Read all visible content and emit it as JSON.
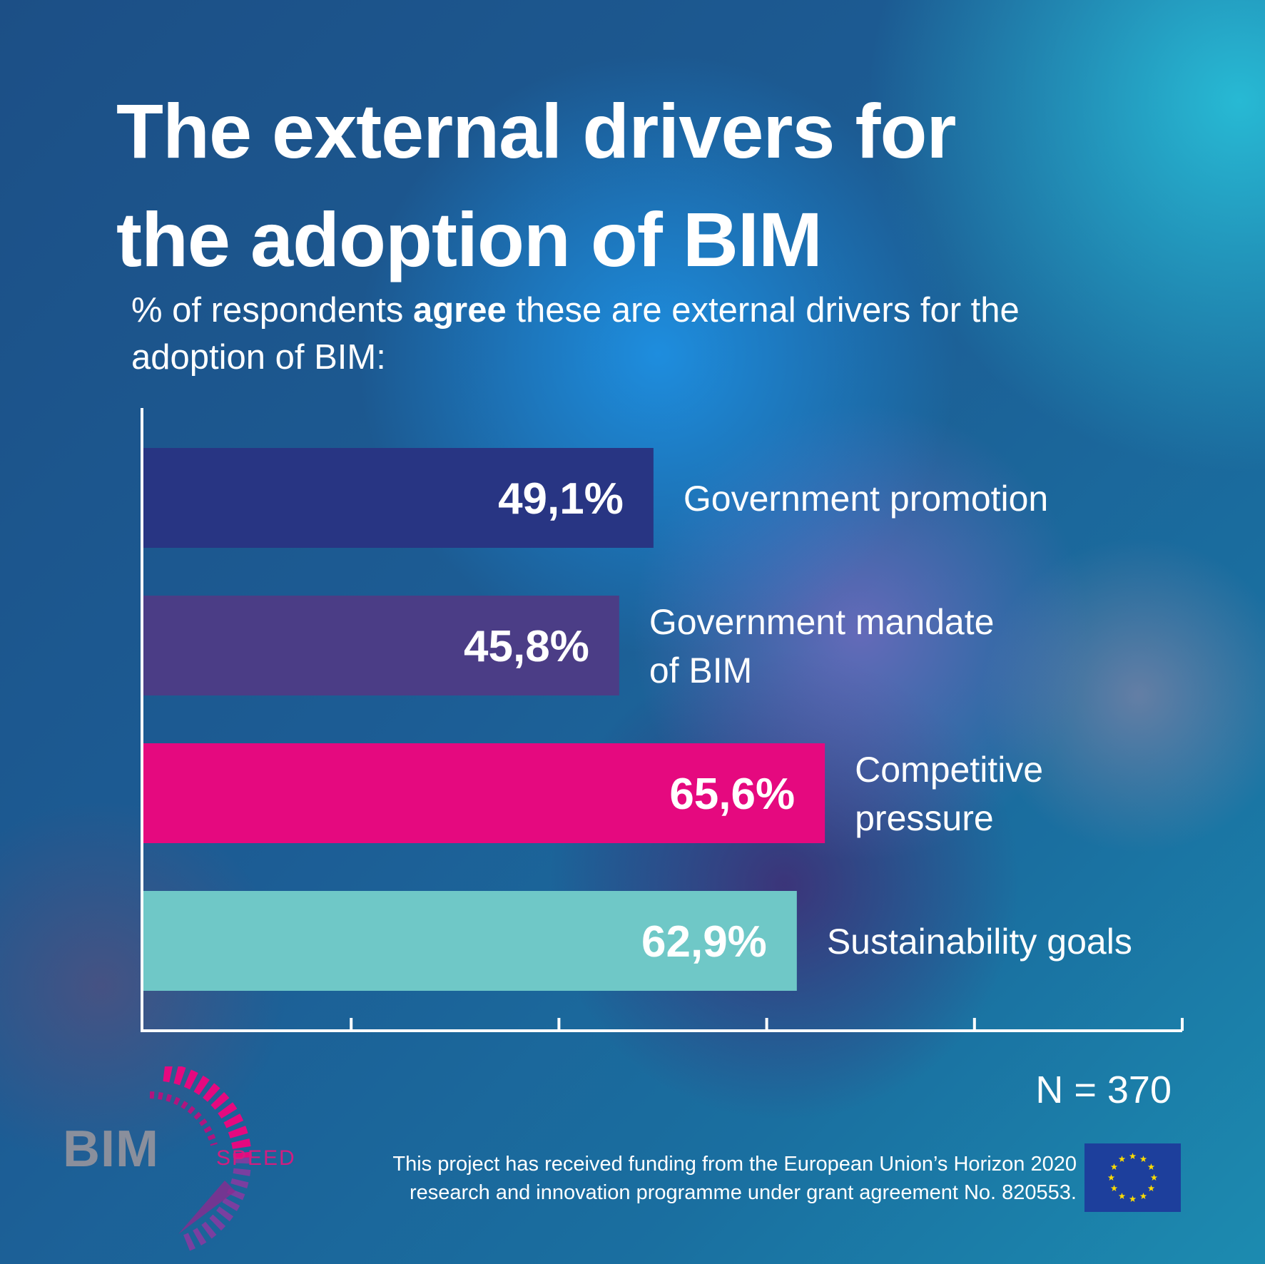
{
  "title": "The external drivers for\nthe adoption of BIM",
  "subtitle": {
    "before": "% of respondents ",
    "bold": "agree",
    "after": " these are external drivers for the adoption of BIM:"
  },
  "chart_data": {
    "type": "bar",
    "orientation": "horizontal",
    "categories": [
      "Government promotion",
      "Government mandate of BIM",
      "Competitive pressure",
      "Sustainability goals"
    ],
    "values": [
      49.1,
      45.8,
      65.6,
      62.9
    ],
    "value_labels": [
      "49,1%",
      "45,8%",
      "65,6%",
      "62,9%"
    ],
    "label_lines": [
      [
        "Government promotion"
      ],
      [
        "Government mandate",
        "of BIM"
      ],
      [
        "Competitive",
        "pressure"
      ],
      [
        "Sustainability goals"
      ]
    ],
    "colors": [
      "#283583",
      "#4b3d86",
      "#e5097f",
      "#6fc8c7"
    ],
    "xlim": [
      0,
      100
    ],
    "grid": false,
    "x_ticks": 5
  },
  "n_label": "N = 370",
  "logo": {
    "main": "BIM",
    "sub": "SPEED"
  },
  "funding_text": "This project has received funding from the European Union’s Horizon 2020\nresearch and innovation programme under grant agreement No. 820553.",
  "colors": {
    "accent": "#e5097f",
    "eu_blue": "#1d3f9c",
    "eu_star": "#ffdd00"
  },
  "icons": {
    "flag": "eu-flag-icon",
    "logo": "bim-speed-logo-icon"
  }
}
